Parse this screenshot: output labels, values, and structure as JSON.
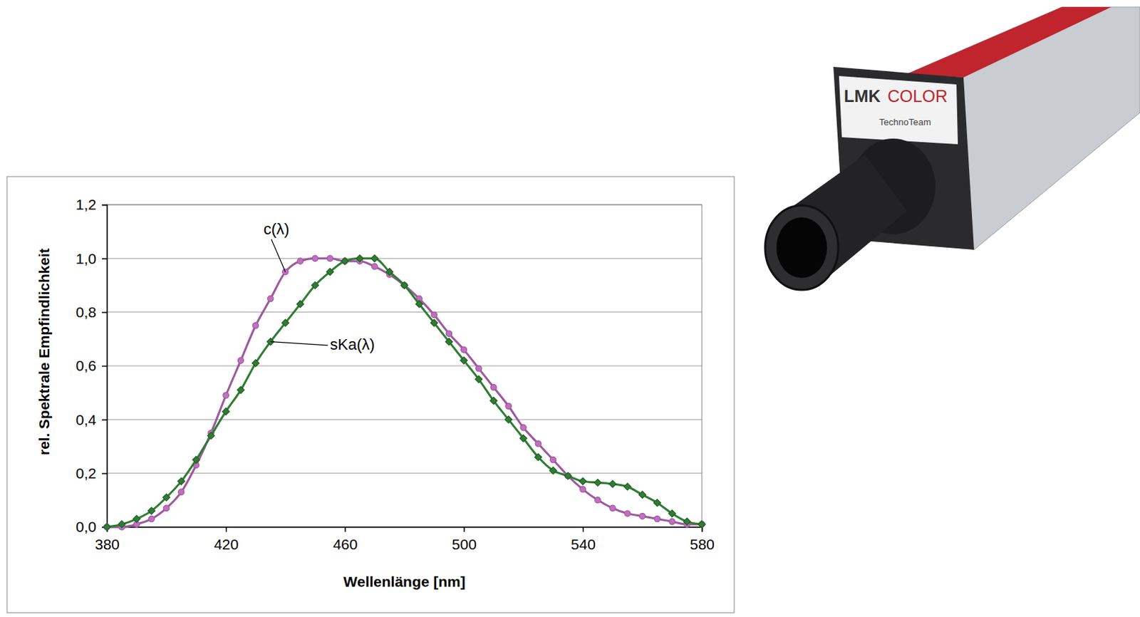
{
  "chart_data": {
    "type": "line",
    "x_label": "Wellenlänge [nm]",
    "y_label": "rel. Spektrale Empfindlichkeit",
    "x": [
      380,
      385,
      390,
      395,
      400,
      405,
      410,
      415,
      420,
      425,
      430,
      435,
      440,
      445,
      450,
      455,
      460,
      465,
      470,
      475,
      480,
      485,
      490,
      495,
      500,
      505,
      510,
      515,
      520,
      525,
      530,
      535,
      540,
      545,
      550,
      555,
      560,
      565,
      570,
      575,
      580
    ],
    "series": [
      {
        "name": "c(λ)",
        "color": "#9c5a9c",
        "marker": "circle",
        "line_style": "solid",
        "values": [
          0.0,
          0.0,
          0.01,
          0.03,
          0.07,
          0.13,
          0.23,
          0.35,
          0.49,
          0.62,
          0.75,
          0.85,
          0.95,
          0.99,
          1.0,
          1.0,
          0.99,
          0.99,
          0.97,
          0.94,
          0.9,
          0.85,
          0.79,
          0.72,
          0.66,
          0.59,
          0.52,
          0.45,
          0.37,
          0.31,
          0.25,
          0.19,
          0.14,
          0.1,
          0.07,
          0.05,
          0.04,
          0.03,
          0.02,
          0.01,
          0.01
        ]
      },
      {
        "name": "sKa(λ)",
        "color": "#2f7d32",
        "marker": "diamond",
        "line_style": "solid",
        "values": [
          0.0,
          0.01,
          0.03,
          0.06,
          0.11,
          0.17,
          0.25,
          0.34,
          0.43,
          0.51,
          0.61,
          0.69,
          0.76,
          0.83,
          0.9,
          0.95,
          0.99,
          1.0,
          1.0,
          0.95,
          0.9,
          0.83,
          0.76,
          0.69,
          0.62,
          0.55,
          0.47,
          0.4,
          0.33,
          0.26,
          0.21,
          0.19,
          0.17,
          0.165,
          0.16,
          0.15,
          0.12,
          0.09,
          0.05,
          0.02,
          0.01
        ]
      }
    ],
    "xlim": [
      380,
      580
    ],
    "xticks": [
      380,
      420,
      460,
      500,
      540,
      580
    ],
    "ylim": [
      0,
      1.2
    ],
    "yticks": [
      {
        "value": 0,
        "label": "0,0"
      },
      {
        "value": 0.2,
        "label": "0,2"
      },
      {
        "value": 0.4,
        "label": "0,4"
      },
      {
        "value": 0.6,
        "label": "0,6"
      },
      {
        "value": 0.8,
        "label": "0,8"
      },
      {
        "value": 1.0,
        "label": "1,0"
      },
      {
        "value": 1.2,
        "label": "1,2"
      }
    ],
    "grid": true
  },
  "photo": {
    "texts": [
      "LMK",
      "COLOR",
      "TechnoTeam"
    ]
  }
}
